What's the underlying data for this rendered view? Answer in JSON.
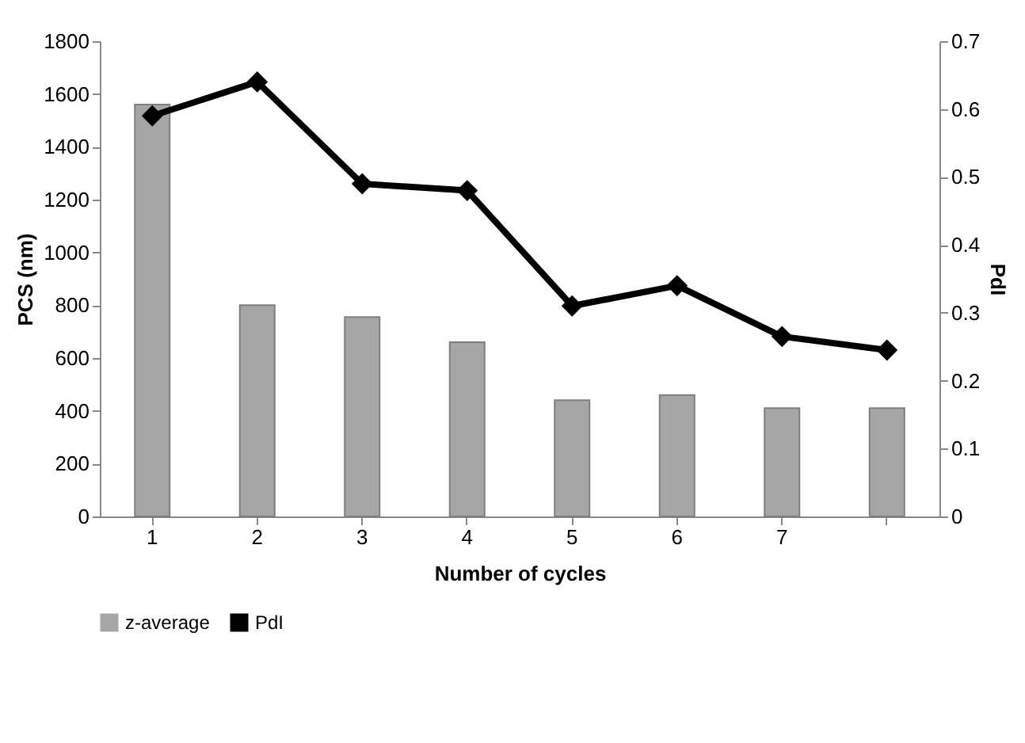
{
  "chart_data": {
    "type": "bar",
    "xlabel": "Number of cycles",
    "ylabel": "PCS (nm)",
    "y2label": "PdI",
    "categories": [
      "1",
      "2",
      "3",
      "4",
      "5",
      "6",
      "7",
      null
    ],
    "series": [
      {
        "name": "z-average",
        "color": "#a6a6a6",
        "values": [
          1560,
          800,
          755,
          660,
          440,
          460,
          410,
          410
        ]
      },
      {
        "name": "PdI",
        "type": "line",
        "axis": "y2",
        "color": "#000000",
        "marker": "diamond",
        "values": [
          0.59,
          0.64,
          0.49,
          0.48,
          0.31,
          0.34,
          0.265,
          0.245
        ]
      }
    ],
    "ylim": [
      0,
      1800
    ],
    "yticks": [
      0,
      200,
      400,
      600,
      800,
      1000,
      1200,
      1400,
      1600,
      1800
    ],
    "y2lim": [
      0,
      0.7
    ],
    "y2ticks": [
      0,
      0.1,
      0.2,
      0.3,
      0.4,
      0.5,
      0.6,
      0.7
    ],
    "grid": false,
    "legend": "bottom"
  }
}
